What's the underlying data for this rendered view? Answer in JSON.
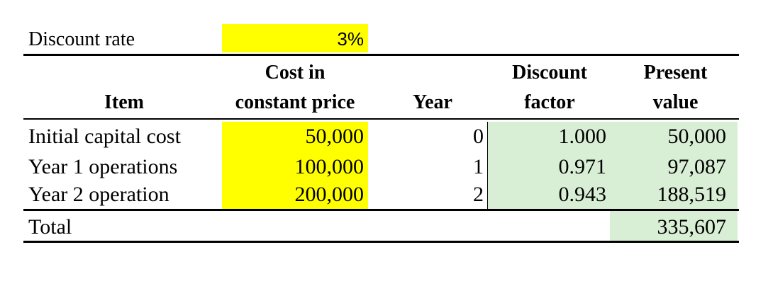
{
  "discount_rate": {
    "label": "Discount rate",
    "value": "3%"
  },
  "headers": {
    "item": "Item",
    "cost_line1": "Cost in",
    "cost_line2": "constant price",
    "year": "Year",
    "discount_line1": "Discount",
    "discount_line2": "factor",
    "pv_line1": "Present",
    "pv_line2": "value"
  },
  "rows": [
    {
      "item": "Initial capital cost",
      "cost": "50,000",
      "year": "0",
      "factor": "1.000",
      "pv": "50,000"
    },
    {
      "item": "Year 1 operations",
      "cost": "100,000",
      "year": "1",
      "factor": "0.971",
      "pv": "97,087"
    },
    {
      "item": "Year 2 operation",
      "cost": "200,000",
      "year": "2",
      "factor": "0.943",
      "pv": "188,519"
    }
  ],
  "total": {
    "label": "Total",
    "pv": "335,607"
  },
  "colors": {
    "input_highlight": "#ffff00",
    "computed_highlight": "#d9efd5"
  }
}
